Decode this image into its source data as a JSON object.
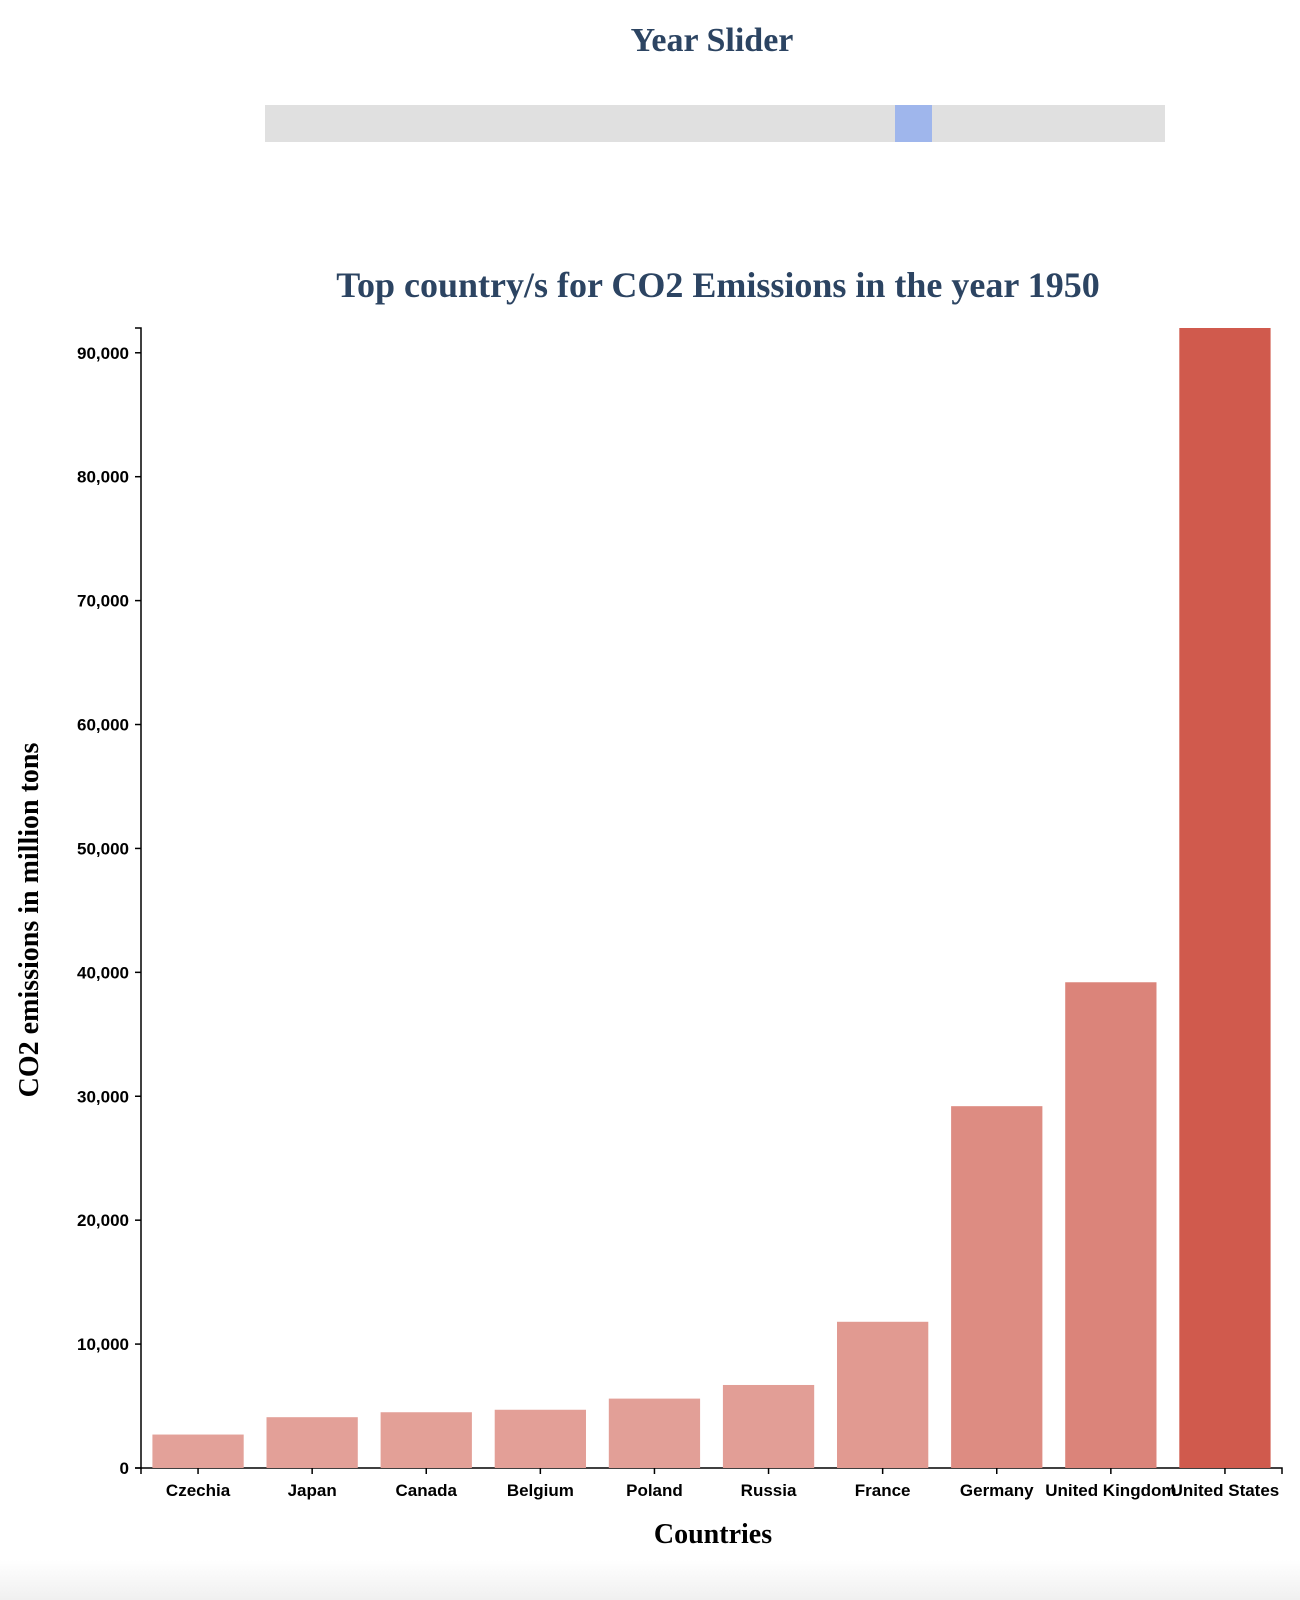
{
  "slider": {
    "title": "Year Slider",
    "value_fraction": 0.73
  },
  "chart_data": {
    "type": "bar",
    "title": "Top country/s for CO2 Emissions in the year 1950",
    "xlabel": "Countries",
    "ylabel": "CO2 emissions in million tons",
    "categories": [
      "Czechia",
      "Japan",
      "Canada",
      "Belgium",
      "Poland",
      "Russia",
      "France",
      "Germany",
      "United Kingdom",
      "United States"
    ],
    "values": [
      2700,
      4100,
      4500,
      4700,
      5600,
      6700,
      11800,
      29200,
      39200,
      92000
    ],
    "ylim": [
      0,
      92000
    ],
    "yticks": [
      0,
      10000,
      20000,
      30000,
      40000,
      50000,
      60000,
      70000,
      80000,
      90000
    ],
    "ytick_labels": [
      "0",
      "10,000",
      "20,000",
      "30,000",
      "40,000",
      "50,000",
      "60,000",
      "70,000",
      "80,000",
      "90,000"
    ],
    "color_low": "#e3a199",
    "color_high": "#d05a4d",
    "grid": false,
    "legend": "none"
  }
}
